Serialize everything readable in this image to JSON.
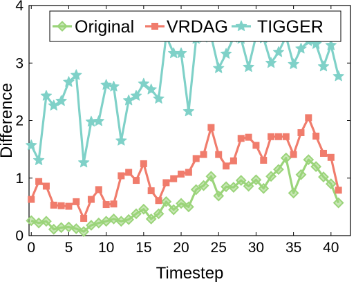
{
  "chart_data": {
    "type": "line",
    "xlabel": "Timestep",
    "ylabel": "Difference",
    "xlim": [
      -0.3,
      42.6
    ],
    "ylim": [
      0,
      4
    ],
    "xticks": [
      0,
      5,
      10,
      15,
      20,
      25,
      30,
      35,
      40
    ],
    "yticks": [
      0,
      1,
      2,
      3,
      4
    ],
    "grid": false,
    "legend_position": "top",
    "x": [
      0,
      1,
      2,
      3,
      4,
      5,
      6,
      7,
      8,
      9,
      10,
      11,
      12,
      13,
      14,
      15,
      16,
      17,
      18,
      19,
      20,
      21,
      22,
      23,
      24,
      25,
      26,
      27,
      28,
      29,
      30,
      31,
      32,
      33,
      34,
      35,
      36,
      37,
      38,
      39,
      40,
      41
    ],
    "series": [
      {
        "name": "Original",
        "color": "#9bd47a",
        "marker": "diamond",
        "values": [
          0.26,
          0.22,
          0.25,
          0.11,
          0.14,
          0.15,
          0.12,
          0.07,
          0.18,
          0.22,
          0.25,
          0.29,
          0.25,
          0.28,
          0.38,
          0.46,
          0.29,
          0.38,
          0.59,
          0.45,
          0.56,
          0.5,
          0.8,
          0.87,
          1.03,
          0.69,
          0.85,
          0.84,
          0.96,
          0.86,
          0.97,
          0.82,
          1.03,
          1.15,
          1.35,
          0.74,
          1.06,
          1.32,
          1.2,
          1.02,
          0.9,
          0.57
        ]
      },
      {
        "name": "VRDAG",
        "color": "#f07c6c",
        "marker": "square",
        "values": [
          0.63,
          0.94,
          0.86,
          0.53,
          0.52,
          0.51,
          0.59,
          0.3,
          0.63,
          0.8,
          0.54,
          0.55,
          1.04,
          1.1,
          0.96,
          1.25,
          0.78,
          0.61,
          0.92,
          0.99,
          1.07,
          1.1,
          1.34,
          1.41,
          1.88,
          1.41,
          1.21,
          1.3,
          1.69,
          1.71,
          1.57,
          1.31,
          1.72,
          1.72,
          1.72,
          1.41,
          1.79,
          2.05,
          1.73,
          1.43,
          1.36,
          0.79
        ]
      },
      {
        "name": "TIGGER",
        "color": "#7fd1c8",
        "marker": "star",
        "values": [
          1.57,
          1.31,
          2.43,
          2.26,
          2.34,
          2.67,
          2.79,
          1.27,
          1.98,
          1.99,
          2.62,
          2.59,
          1.65,
          2.35,
          2.43,
          2.64,
          2.54,
          2.38,
          3.47,
          3.17,
          3.17,
          2.16,
          3.42,
          3.44,
          3.47,
          2.91,
          3.16,
          3.44,
          3.42,
          2.93,
          3.47,
          3.43,
          3.0,
          3.19,
          3.46,
          2.98,
          3.25,
          3.38,
          3.33,
          2.94,
          3.31,
          2.77
        ]
      }
    ]
  }
}
